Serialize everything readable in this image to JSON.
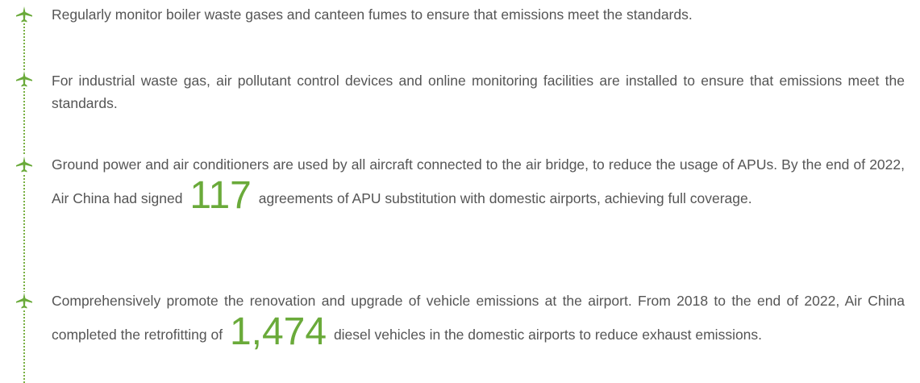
{
  "items": [
    {
      "text": "Regularly monitor boiler waste gases and canteen fumes to ensure that emissions meet the standards."
    },
    {
      "text": "For industrial waste gas, air pollutant control devices and online monitoring facilities are installed to ensure that emissions meet the standards."
    },
    {
      "before": "Ground power and air conditioners are used by all aircraft connected to the air bridge, to reduce the usage of APUs. By the end of 2022, Air China had signed",
      "highlight": "117",
      "after": "agreements of APU substitution with domestic airports, achieving full coverage."
    },
    {
      "before": "Comprehensively promote the renovation and upgrade of vehicle emissions at the airport. From 2018 to the end of 2022, Air China completed the retrofitting of",
      "highlight": "1,474",
      "after": "diesel vehicles in the domestic airports to reduce exhaust emissions."
    }
  ]
}
